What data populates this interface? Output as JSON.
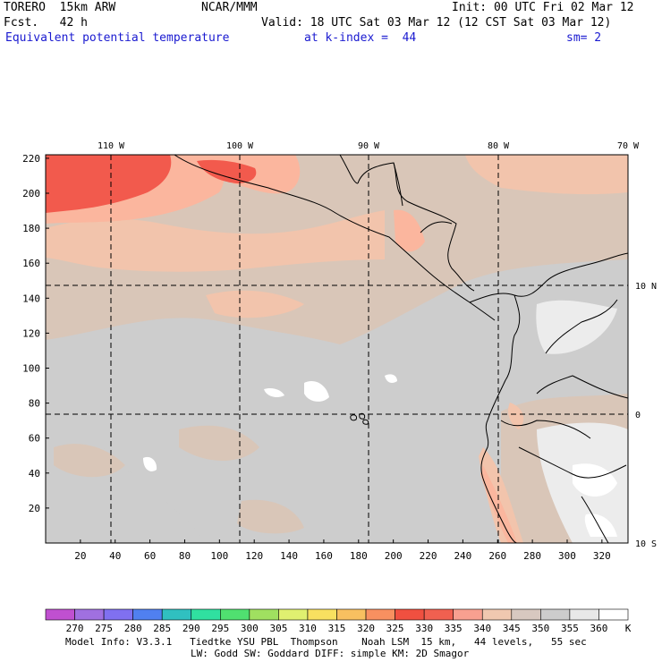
{
  "header": {
    "model": "TORERO  15km ARW",
    "org": "NCAR/MMM",
    "init": "Init: 00 UTC Fri 02 Mar 12",
    "fcst": "Fcst.   42 h",
    "valid": "Valid: 18 UTC Sat 03 Mar 12 (12 CST Sat 03 Mar 12)",
    "field": "Equivalent potential temperature",
    "level": "at k-index =  44",
    "smooth": "sm= 2"
  },
  "map": {
    "x_ticks": [
      "20",
      "40",
      "60",
      "80",
      "100",
      "120",
      "140",
      "160",
      "180",
      "200",
      "220",
      "240",
      "260",
      "280",
      "300",
      "320"
    ],
    "y_ticks": [
      "20",
      "40",
      "60",
      "80",
      "100",
      "120",
      "140",
      "160",
      "180",
      "200",
      "220"
    ],
    "lon_labels": [
      "110 W",
      "100 W",
      "90 W",
      "80 W",
      "70 W"
    ],
    "lat_labels": [
      "10 N",
      "0",
      "10 S"
    ],
    "colors": {
      "warm_red": "#f25a4d",
      "salmon": "#fbb69e",
      "peach": "#f2c4ac",
      "tan": "#d9c6b8",
      "gray": "#cdcdcd",
      "light": "#ececec",
      "white": "#ffffff"
    }
  },
  "colorbar": {
    "labels": [
      "270",
      "275",
      "280",
      "285",
      "290",
      "295",
      "300",
      "305",
      "310",
      "315",
      "320",
      "325",
      "330",
      "335",
      "340",
      "345",
      "350",
      "355",
      "360"
    ],
    "unit": "K",
    "colors": [
      "#c050d0",
      "#a070e0",
      "#8070f0",
      "#5080f0",
      "#30c0c0",
      "#30e0a0",
      "#50e070",
      "#a0e060",
      "#e0f070",
      "#f8e060",
      "#f8c060",
      "#f89060",
      "#f05040",
      "#f06050",
      "#f8a090",
      "#f0c8b0",
      "#d8c8c0",
      "#cccccc",
      "#e8e8e8",
      "#ffffff"
    ]
  },
  "footer": {
    "line1": "Model Info: V3.3.1   Tiedtke YSU PBL  Thompson    Noah LSM  15 km,   44 levels,   55 sec",
    "line2": "LW: Godd SW: Goddard DIFF: simple KM: 2D Smagor"
  }
}
